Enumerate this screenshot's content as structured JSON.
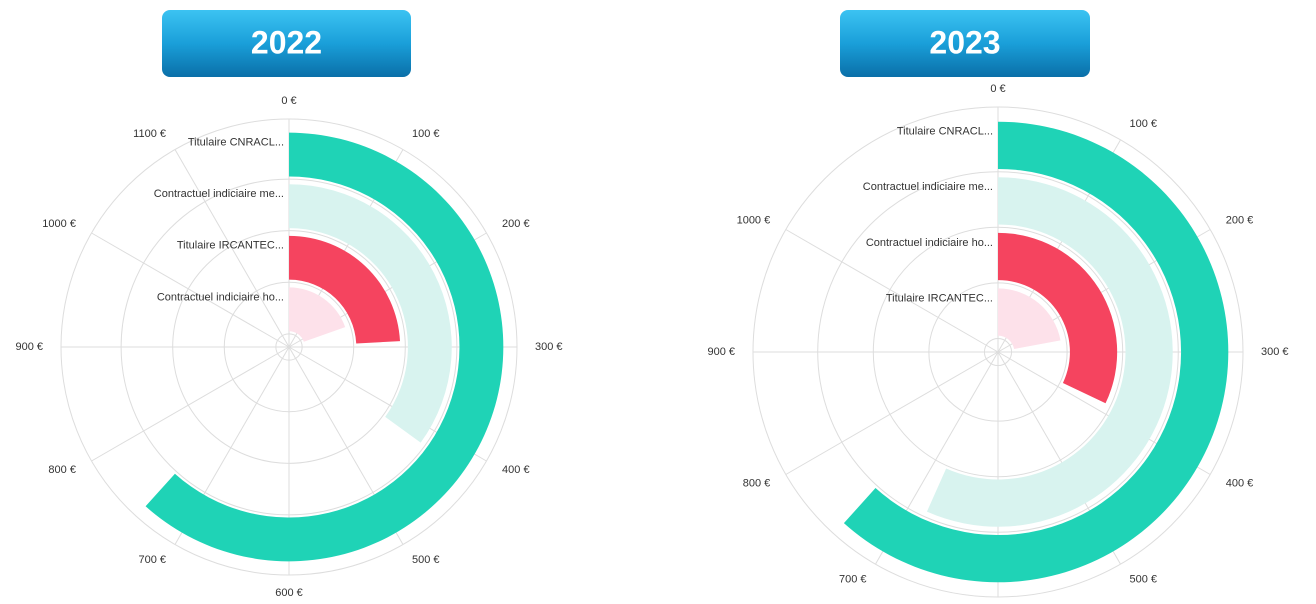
{
  "chart_data": [
    {
      "type": "radialBar",
      "title": "2022",
      "categories": [
        "Titulaire CNRACL...",
        "Contractuel indiciaire me...",
        "Titulaire IRCANTEC...",
        "Contractuel indiciaire ho..."
      ],
      "values": [
        740,
        420,
        290,
        235
      ],
      "colors": [
        "#1fd3b6",
        "#d8f3ef",
        "#f5445f",
        "#fde1ea"
      ],
      "xlim": [
        0,
        1200
      ],
      "xticks": [
        {
          "value": 0,
          "label": "0 €"
        },
        {
          "value": 100,
          "label": "100 €"
        },
        {
          "value": 200,
          "label": "200 €"
        },
        {
          "value": 300,
          "label": "300 €"
        },
        {
          "value": 400,
          "label": "400 €"
        },
        {
          "value": 500,
          "label": "500 €"
        },
        {
          "value": 600,
          "label": "600 €"
        },
        {
          "value": 700,
          "label": "700 €"
        },
        {
          "value": 800,
          "label": "800 €"
        },
        {
          "value": 900,
          "label": "900 €"
        },
        {
          "value": 1000,
          "label": "1000 €"
        },
        {
          "value": 1100,
          "label": "1100 €"
        }
      ]
    },
    {
      "type": "radialBar",
      "title": "2023",
      "categories": [
        "Titulaire CNRACL...",
        "Contractuel indiciaire me...",
        "Contractuel indiciaire ho...",
        "Titulaire IRCANTEC..."
      ],
      "values": [
        740,
        680,
        385,
        265
      ],
      "colors": [
        "#1fd3b6",
        "#d8f3ef",
        "#f5445f",
        "#fde1ea"
      ],
      "xlim": [
        0,
        1200
      ],
      "xticks": [
        {
          "value": 0,
          "label": "0 €"
        },
        {
          "value": 100,
          "label": "100 €"
        },
        {
          "value": 200,
          "label": "200 €"
        },
        {
          "value": 300,
          "label": "300 €"
        },
        {
          "value": 400,
          "label": "400 €"
        },
        {
          "value": 500,
          "label": "500 €"
        },
        {
          "value": 600,
          "label": "600 €"
        },
        {
          "value": 700,
          "label": "700 €"
        },
        {
          "value": 800,
          "label": "800 €"
        },
        {
          "value": 900,
          "label": "900 €"
        },
        {
          "value": 1000,
          "label": "1000 €"
        }
      ]
    }
  ]
}
